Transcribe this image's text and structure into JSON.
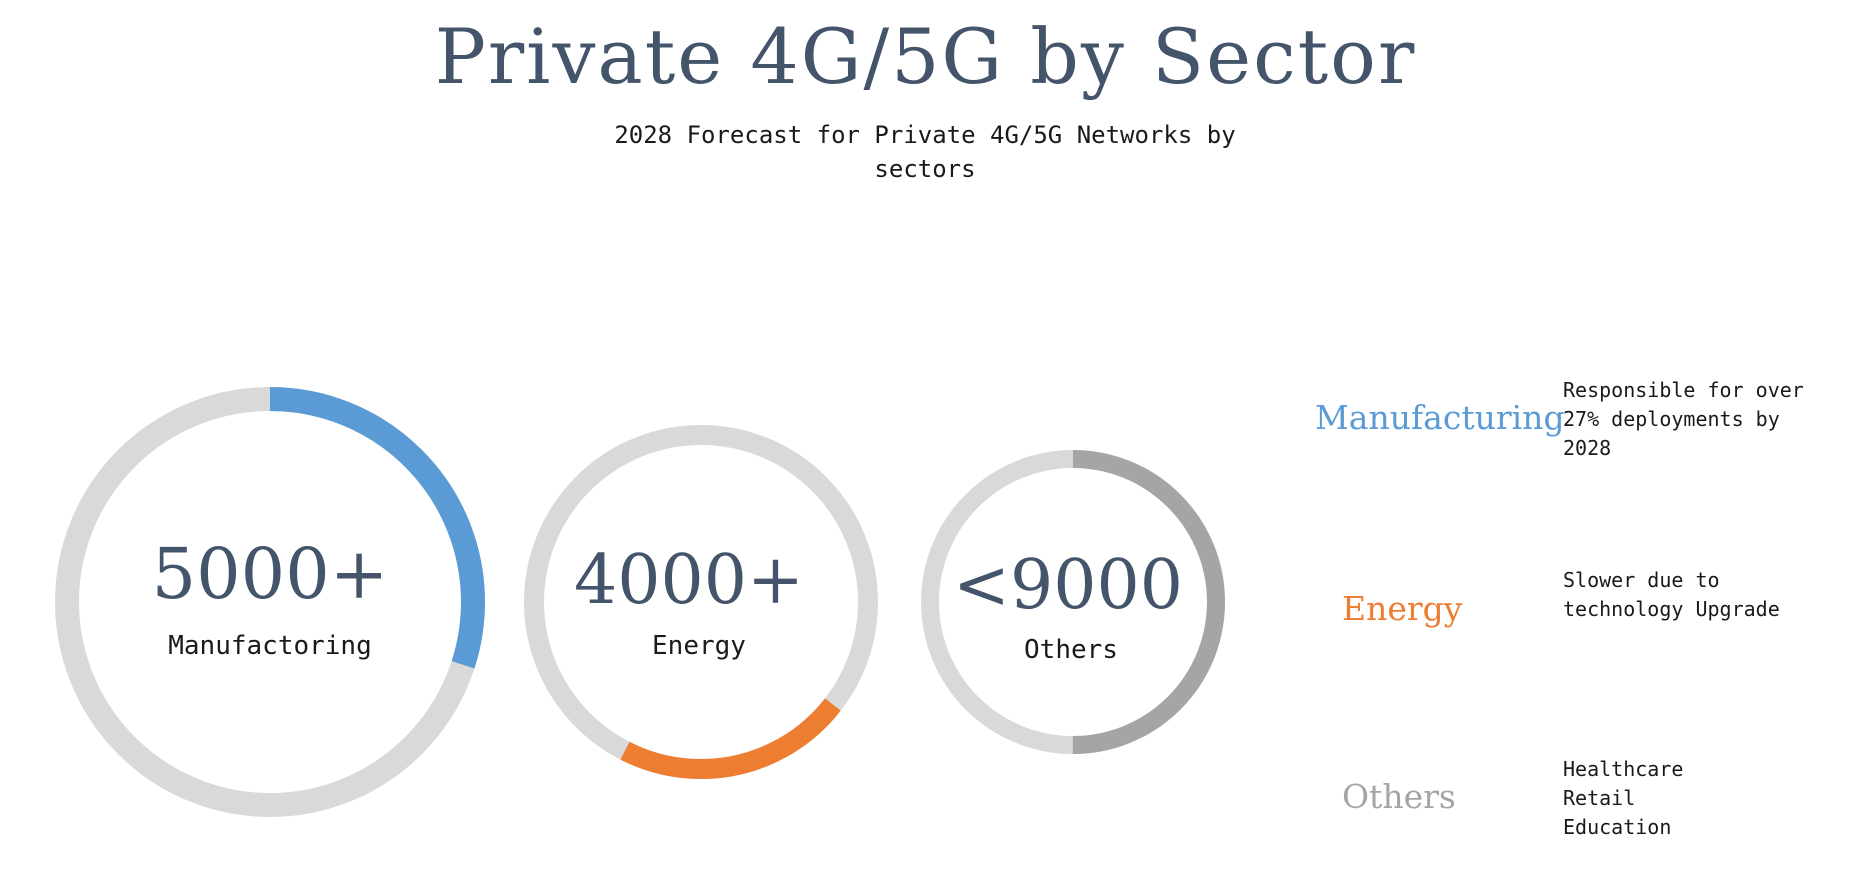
{
  "title": "Private 4G/5G by Sector",
  "subtitle": "2028 Forecast for Private 4G/5G Networks by sectors",
  "colors": {
    "manufacturing": "#5b9bd5",
    "energy": "#ed7d31",
    "others": "#a5a5a5",
    "track": "#d9d9d9",
    "text": "#44546a"
  },
  "chart_data": {
    "type": "donut",
    "items": [
      {
        "value_label": "5000+",
        "category": "Manufactoring",
        "fill": 0.3
      },
      {
        "value_label": "4000+",
        "category": "Energy",
        "fill": 0.22
      },
      {
        "value_label": "<9000",
        "category": "Others",
        "fill": 0.5
      }
    ]
  },
  "legend": [
    {
      "name": "Manufacturing",
      "desc": "Responsible for over\n27% deployments by\n2028"
    },
    {
      "name": "Energy",
      "desc": "Slower due to\ntechnology Upgrade"
    },
    {
      "name": "Others",
      "desc": "Healthcare\nRetail\nEducation"
    }
  ]
}
